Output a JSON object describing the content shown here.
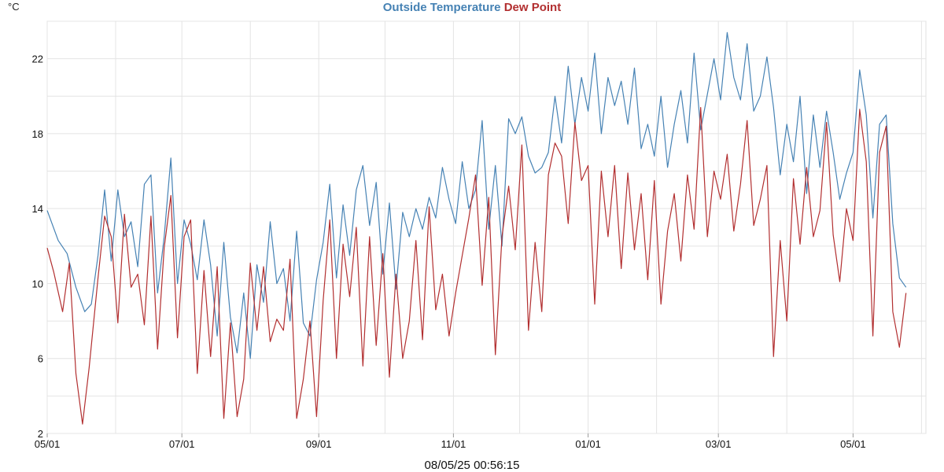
{
  "colors": {
    "outside_temperature": "#4682b4",
    "dew_point": "#b22f30",
    "grid": "#e4e4e4"
  },
  "chart_data": {
    "type": "line",
    "unit": "°C",
    "grid": true,
    "legend": "top-center",
    "ylim": [
      2,
      24
    ],
    "yticks": [
      2,
      6,
      10,
      14,
      18,
      22
    ],
    "xlim": [
      "2024-05-01",
      "2025-06-03"
    ],
    "xticks": [
      {
        "date": "2024-05-01",
        "label": "05/01"
      },
      {
        "date": "2024-07-01",
        "label": "07/01"
      },
      {
        "date": "2024-09-01",
        "label": "09/01"
      },
      {
        "date": "2024-11-01",
        "label": "11/01"
      },
      {
        "date": "2025-01-01",
        "label": "01/01"
      },
      {
        "date": "2025-03-01",
        "label": "03/01"
      },
      {
        "date": "2025-05-01",
        "label": "05/01"
      }
    ],
    "series": [
      {
        "name": "Outside Temperature",
        "color": "#4682b4",
        "points": [
          [
            "2024-05-01",
            13.9
          ],
          [
            "2024-05-06",
            12.3
          ],
          [
            "2024-05-10",
            11.6
          ],
          [
            "2024-05-14",
            9.8
          ],
          [
            "2024-05-18",
            8.5
          ],
          [
            "2024-05-21",
            8.9
          ],
          [
            "2024-05-24",
            11.5
          ],
          [
            "2024-05-27",
            15.0
          ],
          [
            "2024-05-30",
            11.2
          ],
          [
            "2024-06-02",
            15.0
          ],
          [
            "2024-06-05",
            12.5
          ],
          [
            "2024-06-08",
            13.3
          ],
          [
            "2024-06-11",
            10.9
          ],
          [
            "2024-06-14",
            15.3
          ],
          [
            "2024-06-17",
            15.8
          ],
          [
            "2024-06-20",
            9.5
          ],
          [
            "2024-06-23",
            12.5
          ],
          [
            "2024-06-26",
            16.7
          ],
          [
            "2024-06-29",
            10.0
          ],
          [
            "2024-07-02",
            13.4
          ],
          [
            "2024-07-05",
            12.1
          ],
          [
            "2024-07-08",
            10.2
          ],
          [
            "2024-07-11",
            13.4
          ],
          [
            "2024-07-14",
            11.0
          ],
          [
            "2024-07-17",
            7.2
          ],
          [
            "2024-07-20",
            12.2
          ],
          [
            "2024-07-23",
            8.2
          ],
          [
            "2024-07-26",
            6.3
          ],
          [
            "2024-07-29",
            9.5
          ],
          [
            "2024-08-01",
            6.0
          ],
          [
            "2024-08-04",
            11.0
          ],
          [
            "2024-08-07",
            9.0
          ],
          [
            "2024-08-10",
            13.3
          ],
          [
            "2024-08-13",
            10.0
          ],
          [
            "2024-08-16",
            10.8
          ],
          [
            "2024-08-19",
            8.0
          ],
          [
            "2024-08-22",
            12.8
          ],
          [
            "2024-08-25",
            7.9
          ],
          [
            "2024-08-28",
            7.2
          ],
          [
            "2024-08-31",
            10.2
          ],
          [
            "2024-09-03",
            12.2
          ],
          [
            "2024-09-06",
            15.3
          ],
          [
            "2024-09-09",
            10.3
          ],
          [
            "2024-09-12",
            14.2
          ],
          [
            "2024-09-15",
            11.5
          ],
          [
            "2024-09-18",
            15.0
          ],
          [
            "2024-09-21",
            16.3
          ],
          [
            "2024-09-24",
            13.1
          ],
          [
            "2024-09-27",
            15.4
          ],
          [
            "2024-09-30",
            10.5
          ],
          [
            "2024-10-03",
            14.3
          ],
          [
            "2024-10-06",
            9.7
          ],
          [
            "2024-10-09",
            13.8
          ],
          [
            "2024-10-12",
            12.5
          ],
          [
            "2024-10-15",
            14.0
          ],
          [
            "2024-10-18",
            12.9
          ],
          [
            "2024-10-21",
            14.6
          ],
          [
            "2024-10-24",
            13.5
          ],
          [
            "2024-10-27",
            16.2
          ],
          [
            "2024-10-30",
            14.5
          ],
          [
            "2024-11-02",
            13.2
          ],
          [
            "2024-11-05",
            16.5
          ],
          [
            "2024-11-08",
            14.0
          ],
          [
            "2024-11-11",
            15.0
          ],
          [
            "2024-11-14",
            18.7
          ],
          [
            "2024-11-17",
            12.9
          ],
          [
            "2024-11-20",
            16.3
          ],
          [
            "2024-11-23",
            12.0
          ],
          [
            "2024-11-26",
            18.8
          ],
          [
            "2024-11-29",
            18.0
          ],
          [
            "2024-12-02",
            18.9
          ],
          [
            "2024-12-05",
            16.8
          ],
          [
            "2024-12-08",
            15.9
          ],
          [
            "2024-12-11",
            16.2
          ],
          [
            "2024-12-14",
            17.0
          ],
          [
            "2024-12-17",
            20.0
          ],
          [
            "2024-12-20",
            17.5
          ],
          [
            "2024-12-23",
            21.6
          ],
          [
            "2024-12-26",
            18.5
          ],
          [
            "2024-12-29",
            21.0
          ],
          [
            "2025-01-01",
            19.2
          ],
          [
            "2025-01-04",
            22.3
          ],
          [
            "2025-01-07",
            18.0
          ],
          [
            "2025-01-10",
            21.0
          ],
          [
            "2025-01-13",
            19.5
          ],
          [
            "2025-01-16",
            20.8
          ],
          [
            "2025-01-19",
            18.5
          ],
          [
            "2025-01-22",
            21.5
          ],
          [
            "2025-01-25",
            17.2
          ],
          [
            "2025-01-28",
            18.5
          ],
          [
            "2025-01-31",
            16.8
          ],
          [
            "2025-02-03",
            20.0
          ],
          [
            "2025-02-06",
            16.2
          ],
          [
            "2025-02-09",
            18.5
          ],
          [
            "2025-02-12",
            20.3
          ],
          [
            "2025-02-15",
            17.5
          ],
          [
            "2025-02-18",
            22.3
          ],
          [
            "2025-02-21",
            18.2
          ],
          [
            "2025-02-24",
            20.1
          ],
          [
            "2025-02-27",
            22.0
          ],
          [
            "2025-03-02",
            19.8
          ],
          [
            "2025-03-05",
            23.4
          ],
          [
            "2025-03-08",
            21.0
          ],
          [
            "2025-03-11",
            19.8
          ],
          [
            "2025-03-14",
            22.8
          ],
          [
            "2025-03-17",
            19.2
          ],
          [
            "2025-03-20",
            20.0
          ],
          [
            "2025-03-23",
            22.1
          ],
          [
            "2025-03-26",
            19.4
          ],
          [
            "2025-03-29",
            15.8
          ],
          [
            "2025-04-01",
            18.5
          ],
          [
            "2025-04-04",
            16.5
          ],
          [
            "2025-04-07",
            20.0
          ],
          [
            "2025-04-10",
            14.8
          ],
          [
            "2025-04-13",
            19.0
          ],
          [
            "2025-04-16",
            16.2
          ],
          [
            "2025-04-19",
            19.2
          ],
          [
            "2025-04-22",
            17.0
          ],
          [
            "2025-04-25",
            14.5
          ],
          [
            "2025-04-28",
            15.9
          ],
          [
            "2025-05-01",
            17.0
          ],
          [
            "2025-05-04",
            21.4
          ],
          [
            "2025-05-07",
            19.0
          ],
          [
            "2025-05-10",
            13.5
          ],
          [
            "2025-05-13",
            18.5
          ],
          [
            "2025-05-16",
            19.0
          ],
          [
            "2025-05-19",
            13.2
          ],
          [
            "2025-05-22",
            10.3
          ],
          [
            "2025-05-25",
            9.8
          ]
        ]
      },
      {
        "name": "Dew Point",
        "color": "#b22f30",
        "points": [
          [
            "2024-05-01",
            11.9
          ],
          [
            "2024-05-04",
            10.6
          ],
          [
            "2024-05-08",
            8.5
          ],
          [
            "2024-05-11",
            11.1
          ],
          [
            "2024-05-14",
            5.2
          ],
          [
            "2024-05-17",
            2.5
          ],
          [
            "2024-05-20",
            5.5
          ],
          [
            "2024-05-24",
            10.3
          ],
          [
            "2024-05-27",
            13.6
          ],
          [
            "2024-05-30",
            12.5
          ],
          [
            "2024-06-02",
            7.9
          ],
          [
            "2024-06-05",
            13.7
          ],
          [
            "2024-06-08",
            9.8
          ],
          [
            "2024-06-11",
            10.5
          ],
          [
            "2024-06-14",
            7.8
          ],
          [
            "2024-06-17",
            13.6
          ],
          [
            "2024-06-20",
            6.5
          ],
          [
            "2024-06-23",
            11.9
          ],
          [
            "2024-06-26",
            14.7
          ],
          [
            "2024-06-29",
            7.1
          ],
          [
            "2024-07-02",
            12.5
          ],
          [
            "2024-07-05",
            13.4
          ],
          [
            "2024-07-08",
            5.2
          ],
          [
            "2024-07-11",
            10.7
          ],
          [
            "2024-07-14",
            6.1
          ],
          [
            "2024-07-17",
            10.9
          ],
          [
            "2024-07-20",
            2.8
          ],
          [
            "2024-07-23",
            7.9
          ],
          [
            "2024-07-26",
            2.9
          ],
          [
            "2024-07-29",
            4.9
          ],
          [
            "2024-08-01",
            11.1
          ],
          [
            "2024-08-04",
            7.5
          ],
          [
            "2024-08-07",
            10.9
          ],
          [
            "2024-08-10",
            6.9
          ],
          [
            "2024-08-13",
            8.1
          ],
          [
            "2024-08-16",
            7.5
          ],
          [
            "2024-08-19",
            11.3
          ],
          [
            "2024-08-22",
            2.8
          ],
          [
            "2024-08-25",
            4.9
          ],
          [
            "2024-08-28",
            8.0
          ],
          [
            "2024-08-31",
            2.9
          ],
          [
            "2024-09-03",
            9.1
          ],
          [
            "2024-09-06",
            13.4
          ],
          [
            "2024-09-09",
            6.0
          ],
          [
            "2024-09-12",
            12.1
          ],
          [
            "2024-09-15",
            9.3
          ],
          [
            "2024-09-18",
            13.0
          ],
          [
            "2024-09-21",
            5.6
          ],
          [
            "2024-09-24",
            12.5
          ],
          [
            "2024-09-27",
            6.7
          ],
          [
            "2024-09-30",
            11.6
          ],
          [
            "2024-10-03",
            5.0
          ],
          [
            "2024-10-06",
            10.5
          ],
          [
            "2024-10-09",
            6.0
          ],
          [
            "2024-10-12",
            8.0
          ],
          [
            "2024-10-15",
            12.3
          ],
          [
            "2024-10-18",
            7.0
          ],
          [
            "2024-10-21",
            14.1
          ],
          [
            "2024-10-24",
            8.6
          ],
          [
            "2024-10-27",
            10.5
          ],
          [
            "2024-10-30",
            7.2
          ],
          [
            "2024-11-02",
            9.5
          ],
          [
            "2024-11-05",
            11.5
          ],
          [
            "2024-11-08",
            13.5
          ],
          [
            "2024-11-11",
            15.8
          ],
          [
            "2024-11-14",
            9.9
          ],
          [
            "2024-11-17",
            14.6
          ],
          [
            "2024-11-20",
            6.2
          ],
          [
            "2024-11-23",
            12.5
          ],
          [
            "2024-11-26",
            15.2
          ],
          [
            "2024-11-29",
            11.8
          ],
          [
            "2024-12-02",
            17.4
          ],
          [
            "2024-12-05",
            7.5
          ],
          [
            "2024-12-08",
            12.2
          ],
          [
            "2024-12-11",
            8.5
          ],
          [
            "2024-12-14",
            15.8
          ],
          [
            "2024-12-17",
            17.5
          ],
          [
            "2024-12-20",
            16.8
          ],
          [
            "2024-12-23",
            13.2
          ],
          [
            "2024-12-26",
            18.6
          ],
          [
            "2024-12-29",
            15.5
          ],
          [
            "2025-01-01",
            16.3
          ],
          [
            "2025-01-04",
            8.9
          ],
          [
            "2025-01-07",
            16.0
          ],
          [
            "2025-01-10",
            12.5
          ],
          [
            "2025-01-13",
            16.3
          ],
          [
            "2025-01-16",
            10.8
          ],
          [
            "2025-01-19",
            15.9
          ],
          [
            "2025-01-22",
            11.8
          ],
          [
            "2025-01-25",
            14.8
          ],
          [
            "2025-01-28",
            10.2
          ],
          [
            "2025-01-31",
            15.5
          ],
          [
            "2025-02-03",
            8.9
          ],
          [
            "2025-02-06",
            12.8
          ],
          [
            "2025-02-09",
            14.8
          ],
          [
            "2025-02-12",
            11.2
          ],
          [
            "2025-02-15",
            15.8
          ],
          [
            "2025-02-18",
            12.9
          ],
          [
            "2025-02-21",
            19.4
          ],
          [
            "2025-02-24",
            12.5
          ],
          [
            "2025-02-27",
            16.0
          ],
          [
            "2025-03-02",
            14.5
          ],
          [
            "2025-03-05",
            16.9
          ],
          [
            "2025-03-08",
            12.8
          ],
          [
            "2025-03-11",
            15.3
          ],
          [
            "2025-03-14",
            18.7
          ],
          [
            "2025-03-17",
            13.1
          ],
          [
            "2025-03-20",
            14.5
          ],
          [
            "2025-03-23",
            16.3
          ],
          [
            "2025-03-26",
            6.1
          ],
          [
            "2025-03-29",
            12.3
          ],
          [
            "2025-04-01",
            8.0
          ],
          [
            "2025-04-04",
            15.6
          ],
          [
            "2025-04-07",
            12.1
          ],
          [
            "2025-04-10",
            16.2
          ],
          [
            "2025-04-13",
            12.5
          ],
          [
            "2025-04-16",
            13.9
          ],
          [
            "2025-04-19",
            18.6
          ],
          [
            "2025-04-22",
            12.6
          ],
          [
            "2025-04-25",
            10.1
          ],
          [
            "2025-04-28",
            14.0
          ],
          [
            "2025-05-01",
            12.3
          ],
          [
            "2025-05-04",
            19.3
          ],
          [
            "2025-05-07",
            16.5
          ],
          [
            "2025-05-10",
            7.2
          ],
          [
            "2025-05-13",
            17.0
          ],
          [
            "2025-05-16",
            18.4
          ],
          [
            "2025-05-19",
            8.5
          ],
          [
            "2025-05-22",
            6.6
          ],
          [
            "2025-05-25",
            9.5
          ]
        ]
      }
    ]
  },
  "footer": {
    "timestamp": "08/05/25 00:56:15"
  }
}
